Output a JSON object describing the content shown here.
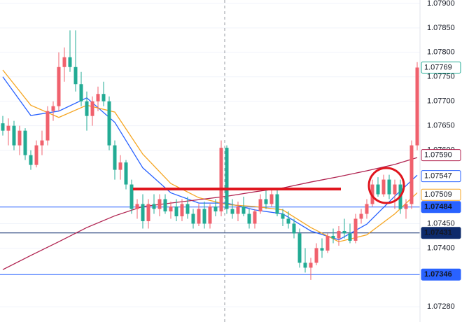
{
  "chart_data": {
    "type": "candlestick",
    "ylim": [
      1.07249,
      1.07907
    ],
    "yticks": [
      {
        "value": 1.079,
        "label": "1.07900"
      },
      {
        "value": 1.0785,
        "label": "1.07850"
      },
      {
        "value": 1.078,
        "label": "1.07800"
      },
      {
        "value": 1.0775,
        "label": "1.07750"
      },
      {
        "value": 1.077,
        "label": "1.07700"
      },
      {
        "value": 1.0765,
        "label": "1.07650"
      },
      {
        "value": 1.076,
        "label": "1.07600"
      },
      {
        "value": 1.0745,
        "label": "1.07450"
      },
      {
        "value": 1.074,
        "label": "1.07400"
      },
      {
        "value": 1.0728,
        "label": "1.07280"
      }
    ],
    "up_color": "#f0616d",
    "down_color": "#22ab94",
    "open": [
      1.07655,
      1.0764,
      1.0765,
      1.0761,
      1.0764,
      1.0759,
      1.0757,
      1.0761,
      1.0762,
      1.0768,
      1.0769,
      1.0777,
      1.0779,
      1.0777,
      1.07735,
      1.077,
      1.0767,
      1.077,
      1.07715,
      1.077,
      1.0761,
      1.0756,
      1.07575,
      1.0753,
      1.0748,
      1.0749,
      1.07455,
      1.0749,
      1.0748,
      1.075,
      1.07475,
      1.07485,
      1.07465,
      1.0749,
      1.0747,
      1.0745,
      1.0748,
      1.0745,
      1.07485,
      1.07475,
      1.07605,
      1.0748,
      1.0747,
      1.07485,
      1.0747,
      1.0745,
      1.07475,
      1.075,
      1.0749,
      1.0751,
      1.0747,
      1.0746,
      1.0745,
      1.0743,
      1.0737,
      1.0736,
      1.0737,
      1.074,
      1.07395,
      1.07425,
      1.0742,
      1.07435,
      1.0743,
      1.07415,
      1.0746,
      1.0747,
      1.0749,
      1.0753,
      1.0751,
      1.0754,
      1.0751,
      1.0753,
      1.0748,
      1.0749,
      1.0761
    ],
    "high": [
      1.0767,
      1.07665,
      1.0766,
      1.0765,
      1.07645,
      1.076,
      1.0762,
      1.0764,
      1.0769,
      1.077,
      1.078,
      1.0781,
      1.07845,
      1.07845,
      1.0776,
      1.0772,
      1.0771,
      1.0773,
      1.0774,
      1.0771,
      1.0762,
      1.0759,
      1.0758,
      1.0754,
      1.075,
      1.0751,
      1.075,
      1.0751,
      1.0751,
      1.0751,
      1.07495,
      1.075,
      1.075,
      1.07505,
      1.0748,
      1.0749,
      1.07495,
      1.0749,
      1.075,
      1.0762,
      1.0761,
      1.075,
      1.07495,
      1.07505,
      1.0748,
      1.0748,
      1.0751,
      1.0752,
      1.0752,
      1.0752,
      1.0748,
      1.07475,
      1.0746,
      1.0744,
      1.074,
      1.0738,
      1.0741,
      1.0742,
      1.0743,
      1.0744,
      1.07445,
      1.0746,
      1.0745,
      1.0747,
      1.0748,
      1.075,
      1.0754,
      1.07545,
      1.0755,
      1.0755,
      1.0754,
      1.0754,
      1.075,
      1.0762,
      1.0778
    ],
    "low": [
      1.0763,
      1.0761,
      1.076,
      1.0759,
      1.0758,
      1.0756,
      1.07565,
      1.0759,
      1.0761,
      1.0766,
      1.0768,
      1.0774,
      1.0776,
      1.0772,
      1.0769,
      1.0764,
      1.0765,
      1.0768,
      1.0769,
      1.076,
      1.0754,
      1.0754,
      1.0752,
      1.0747,
      1.0746,
      1.0744,
      1.0744,
      1.0747,
      1.07465,
      1.0747,
      1.0746,
      1.07455,
      1.07455,
      1.0746,
      1.0744,
      1.07445,
      1.0744,
      1.0744,
      1.07465,
      1.07465,
      1.0747,
      1.0746,
      1.07455,
      1.07465,
      1.0744,
      1.0744,
      1.0747,
      1.0748,
      1.07485,
      1.07465,
      1.07445,
      1.0744,
      1.0742,
      1.0736,
      1.0735,
      1.07335,
      1.07365,
      1.0738,
      1.0739,
      1.0741,
      1.07405,
      1.0742,
      1.0741,
      1.0741,
      1.0745,
      1.0746,
      1.07485,
      1.07505,
      1.07505,
      1.075,
      1.0748,
      1.0747,
      1.0746,
      1.0748,
      1.076
    ],
    "close": [
      1.0764,
      1.0765,
      1.0761,
      1.0764,
      1.0759,
      1.0757,
      1.0761,
      1.0762,
      1.0768,
      1.0769,
      1.0777,
      1.0779,
      1.0777,
      1.07735,
      1.077,
      1.0767,
      1.077,
      1.07715,
      1.077,
      1.0761,
      1.0756,
      1.07575,
      1.0753,
      1.0748,
      1.0749,
      1.07455,
      1.0749,
      1.0748,
      1.075,
      1.07475,
      1.07485,
      1.07465,
      1.0749,
      1.0747,
      1.0745,
      1.0748,
      1.0745,
      1.07485,
      1.07475,
      1.07605,
      1.0748,
      1.0747,
      1.07485,
      1.0747,
      1.0745,
      1.07475,
      1.075,
      1.0749,
      1.0751,
      1.0747,
      1.0746,
      1.0745,
      1.0743,
      1.0737,
      1.0736,
      1.0737,
      1.074,
      1.07395,
      1.07425,
      1.0742,
      1.07435,
      1.0743,
      1.07415,
      1.0746,
      1.0747,
      1.0749,
      1.0753,
      1.0751,
      1.0754,
      1.0751,
      1.0753,
      1.0748,
      1.0749,
      1.0761,
      1.07769
    ],
    "lines": [
      {
        "color": "#2962ff",
        "x": [
          0,
          5,
          10,
          15,
          20,
          25,
          30,
          35,
          40,
          45,
          50,
          55,
          60,
          65,
          70,
          74
        ],
        "values": [
          1.0775,
          1.07671,
          1.0768,
          1.07707,
          1.07657,
          1.07564,
          1.07513,
          1.07492,
          1.07492,
          1.07478,
          1.0747,
          1.07435,
          1.07417,
          1.07449,
          1.07506,
          1.07549
        ]
      },
      {
        "color": "#f5a623",
        "x": [
          0,
          5,
          10,
          15,
          20,
          25,
          30,
          35,
          40,
          45,
          50,
          55,
          60,
          65,
          70,
          74
        ],
        "values": [
          1.07764,
          1.07692,
          1.07667,
          1.07692,
          1.07678,
          1.07592,
          1.07532,
          1.07503,
          1.07489,
          1.07485,
          1.07478,
          1.07442,
          1.07413,
          1.07427,
          1.0747,
          1.07513
        ]
      },
      {
        "color": "#b0224f",
        "x": [
          0,
          5,
          10,
          15,
          20,
          25,
          30,
          35,
          40,
          45,
          50,
          55,
          60,
          65,
          70,
          74
        ],
        "values": [
          1.07356,
          1.07385,
          1.07413,
          1.07442,
          1.07466,
          1.07485,
          1.07492,
          1.07499,
          1.07506,
          1.07515,
          1.07523,
          1.07535,
          1.07546,
          1.07558,
          1.07571,
          1.07585
        ]
      }
    ],
    "price_labels": [
      {
        "value": 1.07769,
        "label": "1.07769",
        "color": "#22ab94",
        "filled": false,
        "line": false
      },
      {
        "value": 1.0759,
        "label": "1.07590",
        "color": "#b0224f",
        "filled": false,
        "line": false
      },
      {
        "value": 1.07547,
        "label": "1.07547",
        "color": "#2962ff",
        "filled": false,
        "line": false
      },
      {
        "value": 1.07509,
        "label": "1.07509",
        "color": "#f5a623",
        "filled": false,
        "line": false
      },
      {
        "value": 1.07484,
        "label": "1.07484",
        "color": "#2962ff",
        "filled": true,
        "line": true
      },
      {
        "value": 1.07431,
        "label": "1.07431",
        "color": "#0d2a6b",
        "filled": true,
        "line": true
      },
      {
        "value": 1.07346,
        "label": "1.07346",
        "color": "#2962ff",
        "filled": true,
        "line": true
      }
    ]
  }
}
